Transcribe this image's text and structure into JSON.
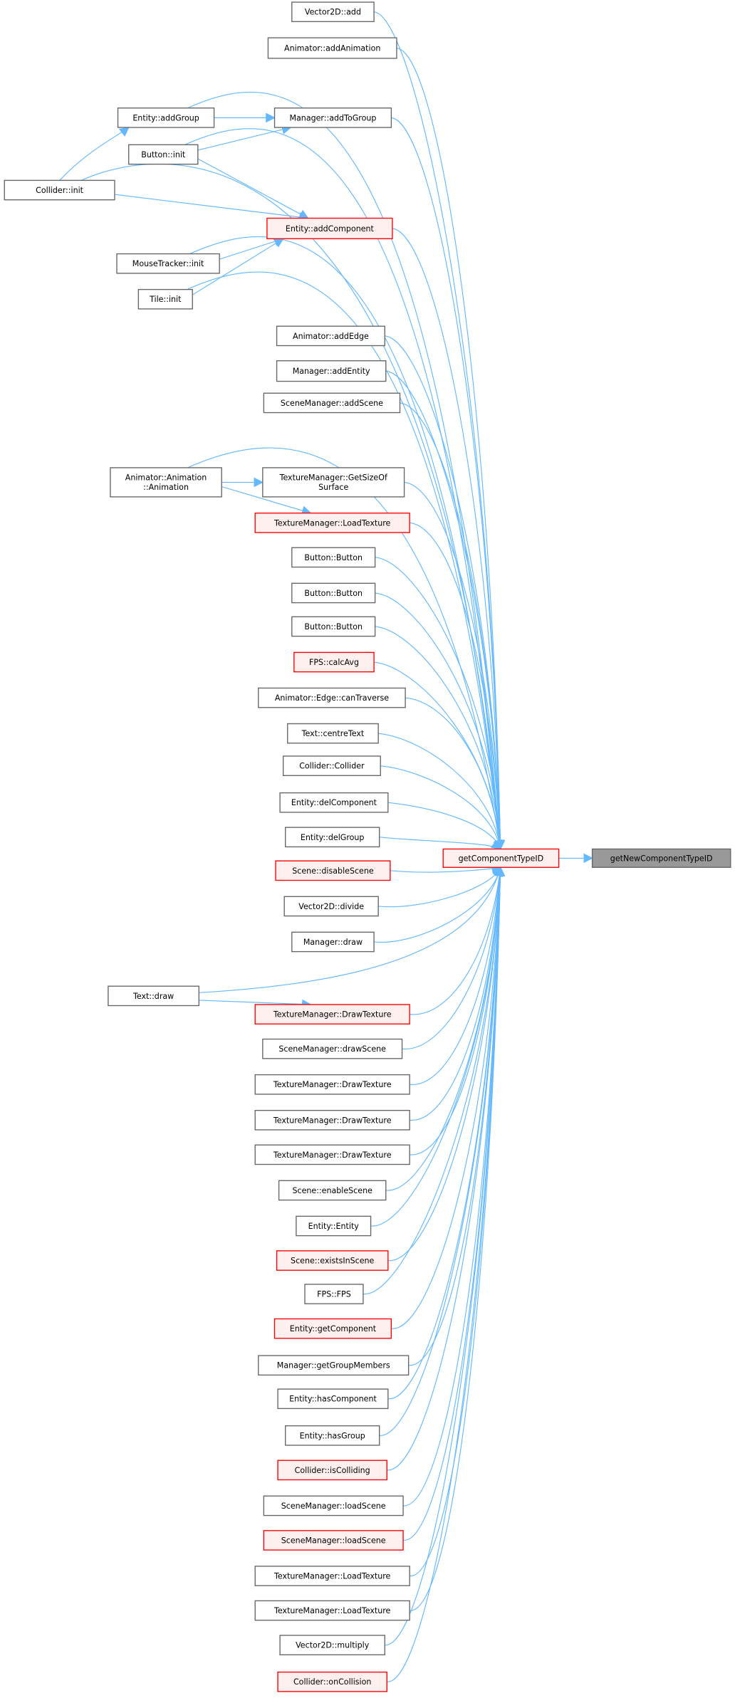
{
  "graph": {
    "focus": {
      "label": "getNewComponentTypeID"
    },
    "caller": {
      "label": "getComponentTypeID",
      "highlight": true
    },
    "colors": {
      "edge": "#63b8ff",
      "highlight_border": "#ff0000",
      "highlight_fill": "#fff0f0",
      "focus_fill": "#999999",
      "border": "#666666"
    },
    "callers": [
      {
        "lines": [
          "Vector2D::add"
        ],
        "highlight": false
      },
      {
        "lines": [
          "Animator::addAnimation"
        ],
        "highlight": false
      },
      {
        "lines": [
          "Manager::addToGroup"
        ],
        "highlight": false
      },
      {
        "lines": [
          "Entity::addComponent"
        ],
        "highlight": true
      },
      {
        "lines": [
          "Animator::addEdge"
        ],
        "highlight": false
      },
      {
        "lines": [
          "Manager::addEntity"
        ],
        "highlight": false
      },
      {
        "lines": [
          "SceneManager::addScene"
        ],
        "highlight": false
      },
      {
        "lines": [
          "TextureManager::GetSizeOf",
          "Surface"
        ],
        "highlight": false
      },
      {
        "lines": [
          "TextureManager::LoadTexture"
        ],
        "highlight": true
      },
      {
        "lines": [
          "Button::Button"
        ],
        "highlight": false
      },
      {
        "lines": [
          "Button::Button"
        ],
        "highlight": false
      },
      {
        "lines": [
          "Button::Button"
        ],
        "highlight": false
      },
      {
        "lines": [
          "FPS::calcAvg"
        ],
        "highlight": true
      },
      {
        "lines": [
          "Animator::Edge::canTraverse"
        ],
        "highlight": false
      },
      {
        "lines": [
          "Text::centreText"
        ],
        "highlight": false
      },
      {
        "lines": [
          "Collider::Collider"
        ],
        "highlight": false
      },
      {
        "lines": [
          "Entity::delComponent"
        ],
        "highlight": false
      },
      {
        "lines": [
          "Entity::delGroup"
        ],
        "highlight": false
      },
      {
        "lines": [
          "Scene::disableScene"
        ],
        "highlight": true
      },
      {
        "lines": [
          "Vector2D::divide"
        ],
        "highlight": false
      },
      {
        "lines": [
          "Manager::draw"
        ],
        "highlight": false
      },
      {
        "lines": [
          "TextureManager::DrawTexture"
        ],
        "highlight": true
      },
      {
        "lines": [
          "SceneManager::drawScene"
        ],
        "highlight": false
      },
      {
        "lines": [
          "TextureManager::DrawTexture"
        ],
        "highlight": false
      },
      {
        "lines": [
          "TextureManager::DrawTexture"
        ],
        "highlight": false
      },
      {
        "lines": [
          "TextureManager::DrawTexture"
        ],
        "highlight": false
      },
      {
        "lines": [
          "Scene::enableScene"
        ],
        "highlight": false
      },
      {
        "lines": [
          "Entity::Entity"
        ],
        "highlight": false
      },
      {
        "lines": [
          "Scene::existsInScene"
        ],
        "highlight": true
      },
      {
        "lines": [
          "FPS::FPS"
        ],
        "highlight": false
      },
      {
        "lines": [
          "Entity::getComponent"
        ],
        "highlight": true
      },
      {
        "lines": [
          "Manager::getGroupMembers"
        ],
        "highlight": false
      },
      {
        "lines": [
          "Entity::hasComponent"
        ],
        "highlight": false
      },
      {
        "lines": [
          "Entity::hasGroup"
        ],
        "highlight": false
      },
      {
        "lines": [
          "Collider::isColliding"
        ],
        "highlight": true
      },
      {
        "lines": [
          "SceneManager::loadScene"
        ],
        "highlight": false
      },
      {
        "lines": [
          "SceneManager::loadScene"
        ],
        "highlight": true
      },
      {
        "lines": [
          "TextureManager::LoadTexture"
        ],
        "highlight": false
      },
      {
        "lines": [
          "TextureManager::LoadTexture"
        ],
        "highlight": false
      },
      {
        "lines": [
          "Vector2D::multiply"
        ],
        "highlight": false
      },
      {
        "lines": [
          "Collider::onCollision"
        ],
        "highlight": true
      }
    ],
    "outer_callers": [
      {
        "id": "addGroup",
        "lines": [
          "Entity::addGroup"
        ],
        "calls": [
          "c2"
        ]
      },
      {
        "id": "btnInit",
        "lines": [
          "Button::init"
        ],
        "calls": [
          "c2",
          "c3"
        ]
      },
      {
        "id": "colInit",
        "lines": [
          "Collider::init"
        ],
        "calls": [
          "addGroup",
          "c3"
        ]
      },
      {
        "id": "mtInit",
        "lines": [
          "MouseTracker::init"
        ],
        "calls": [
          "c3"
        ]
      },
      {
        "id": "tileInit",
        "lines": [
          "Tile::init"
        ],
        "calls": [
          "c3"
        ]
      },
      {
        "id": "animCtor",
        "lines": [
          "Animator::Animation",
          "::Animation"
        ],
        "calls": [
          "c7",
          "c8"
        ]
      },
      {
        "id": "textDraw",
        "lines": [
          "Text::draw"
        ],
        "calls": [
          "c21"
        ]
      }
    ]
  }
}
